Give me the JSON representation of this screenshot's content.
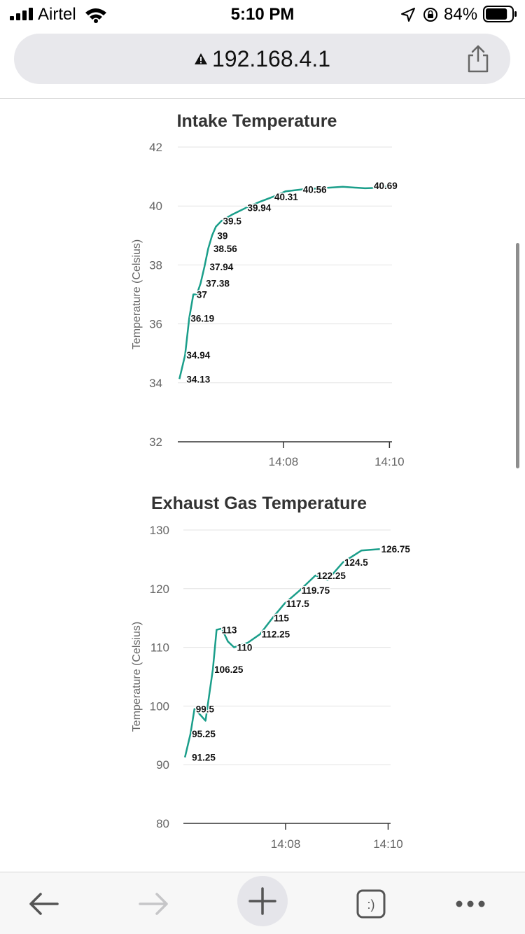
{
  "status_bar": {
    "carrier": "Airtel",
    "time": "5:10 PM",
    "battery_percent": "84%",
    "battery_level": 0.84
  },
  "browser": {
    "url": "192.168.4.1",
    "secure_warning_icon": "warning-triangle-icon"
  },
  "colors": {
    "series": "#1a9e8a",
    "grid": "#e3e3e3",
    "axis_text": "#666666",
    "title": "#333333"
  },
  "chart_data": [
    {
      "type": "line",
      "title": "Intake Temperature",
      "ylabel": "Temperature (Celsius)",
      "xlabel": "",
      "ylim": [
        32,
        42
      ],
      "yticks": [
        32,
        34,
        36,
        38,
        40,
        42
      ],
      "xticks": [
        {
          "x": 14.1333,
          "label": "14:08"
        },
        {
          "x": 14.1667,
          "label": "14:10"
        }
      ],
      "xlim": [
        14.1,
        14.1675
      ],
      "series": [
        {
          "name": "Intake Temperature",
          "points": [
            [
              14.1005,
              34.13
            ],
            [
              14.1023,
              34.94
            ],
            [
              14.1036,
              36.19
            ],
            [
              14.1049,
              37.0
            ],
            [
              14.106,
              37.0
            ],
            [
              14.1072,
              37.38
            ],
            [
              14.1084,
              37.94
            ],
            [
              14.1096,
              38.56
            ],
            [
              14.1108,
              39.0
            ],
            [
              14.112,
              39.3
            ],
            [
              14.1138,
              39.5
            ],
            [
              14.117,
              39.7
            ],
            [
              14.1215,
              39.94
            ],
            [
              14.126,
              40.15
            ],
            [
              14.13,
              40.31
            ],
            [
              14.134,
              40.5
            ],
            [
              14.139,
              40.56
            ],
            [
              14.145,
              40.6
            ],
            [
              14.152,
              40.65
            ],
            [
              14.159,
              40.6
            ],
            [
              14.164,
              40.62
            ],
            [
              14.1672,
              40.69
            ]
          ]
        }
      ],
      "data_labels": [
        {
          "x": 14.1023,
          "y": 34.13,
          "text": "34.13"
        },
        {
          "x": 14.1023,
          "y": 34.94,
          "text": "34.94"
        },
        {
          "x": 14.1036,
          "y": 36.19,
          "text": "36.19"
        },
        {
          "x": 14.1055,
          "y": 37.0,
          "text": "37"
        },
        {
          "x": 14.1084,
          "y": 37.38,
          "text": "37.38"
        },
        {
          "x": 14.1096,
          "y": 37.94,
          "text": "37.94"
        },
        {
          "x": 14.1108,
          "y": 38.56,
          "text": "38.56"
        },
        {
          "x": 14.112,
          "y": 39.0,
          "text": "39"
        },
        {
          "x": 14.1138,
          "y": 39.5,
          "text": "39.5"
        },
        {
          "x": 14.1215,
          "y": 39.94,
          "text": "39.94"
        },
        {
          "x": 14.13,
          "y": 40.31,
          "text": "40.31"
        },
        {
          "x": 14.139,
          "y": 40.56,
          "text": "40.56"
        },
        {
          "x": 14.1672,
          "y": 40.69,
          "text": "40.69"
        }
      ]
    },
    {
      "type": "line",
      "title": "Exhaust Gas Temperature",
      "ylabel": "Temperature (Celsius)",
      "xlabel": "",
      "ylim": [
        80,
        130
      ],
      "yticks": [
        80,
        90,
        100,
        110,
        120,
        130
      ],
      "xticks": [
        {
          "x": 14.1333,
          "label": "14:08"
        },
        {
          "x": 14.1667,
          "label": "14:10"
        }
      ],
      "xlim": [
        14.1,
        14.1675
      ],
      "series": [
        {
          "name": "Exhaust Gas Temperature",
          "points": [
            [
              14.1005,
              91.25
            ],
            [
              14.1023,
              95.25
            ],
            [
              14.1036,
              99.5
            ],
            [
              14.1055,
              98.5
            ],
            [
              14.1072,
              97.5
            ],
            [
              14.1096,
              106.25
            ],
            [
              14.1108,
              113.0
            ],
            [
              14.1125,
              113.2
            ],
            [
              14.1145,
              111.0
            ],
            [
              14.1165,
              110.0
            ],
            [
              14.121,
              110.8
            ],
            [
              14.125,
              112.25
            ],
            [
              14.129,
              115.0
            ],
            [
              14.133,
              117.5
            ],
            [
              14.138,
              119.75
            ],
            [
              14.143,
              122.25
            ],
            [
              14.147,
              121.5
            ],
            [
              14.152,
              124.5
            ],
            [
              14.158,
              126.5
            ],
            [
              14.164,
              126.75
            ]
          ]
        }
      ],
      "data_labels": [
        {
          "x": 14.1023,
          "y": 91.25,
          "text": "91.25"
        },
        {
          "x": 14.1023,
          "y": 95.25,
          "text": "95.25"
        },
        {
          "x": 14.1036,
          "y": 99.5,
          "text": "99.5"
        },
        {
          "x": 14.1096,
          "y": 106.25,
          "text": "106.25"
        },
        {
          "x": 14.112,
          "y": 113.0,
          "text": "113"
        },
        {
          "x": 14.117,
          "y": 110.0,
          "text": "110"
        },
        {
          "x": 14.125,
          "y": 112.25,
          "text": "112.25"
        },
        {
          "x": 14.129,
          "y": 115.0,
          "text": "115"
        },
        {
          "x": 14.133,
          "y": 117.5,
          "text": "117.5"
        },
        {
          "x": 14.138,
          "y": 119.75,
          "text": "119.75"
        },
        {
          "x": 14.143,
          "y": 122.25,
          "text": "122.25"
        },
        {
          "x": 14.152,
          "y": 124.5,
          "text": "124.5"
        },
        {
          "x": 14.164,
          "y": 126.75,
          "text": "126.75"
        }
      ]
    }
  ],
  "toolbar": {
    "back_icon": "arrow-left-icon",
    "forward_icon": "arrow-right-icon",
    "new_tab_icon": "plus-icon",
    "tabs_icon": "tabs-smiley-icon",
    "tabs_label": ":)",
    "more_icon": "more-dots-icon"
  }
}
